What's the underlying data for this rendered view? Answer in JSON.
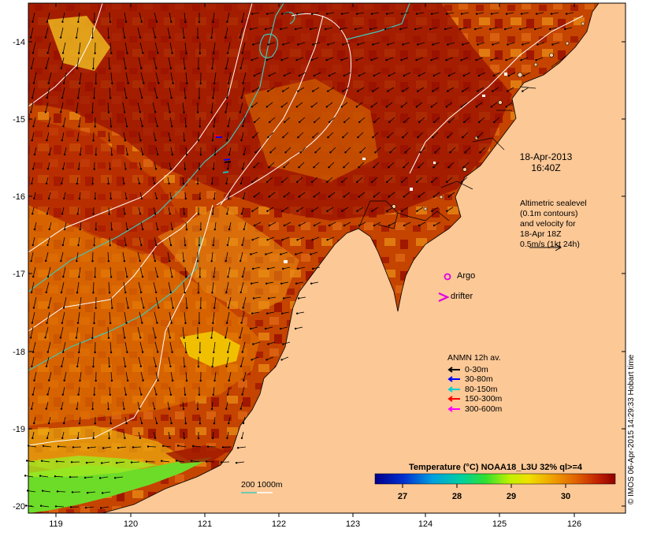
{
  "map": {
    "lat_ticks": [
      "-14",
      "-15",
      "-16",
      "-17",
      "-18",
      "-19",
      "-20"
    ],
    "lon_ticks": [
      "119",
      "120",
      "121",
      "122",
      "123",
      "124",
      "125",
      "126"
    ],
    "date_line1": "18-Apr-2013",
    "date_line2": "16:40Z",
    "altimetry_lines": [
      "Altimetric sealevel",
      "(0.1m contours)",
      "and velocity for",
      "18-Apr 18Z",
      "0.5m/s (1kt 24h)"
    ],
    "argo_label": "Argo",
    "drifter_label": "drifter",
    "anmn_title": "ANMN 12h av.",
    "anmn_items": [
      {
        "label": "0-30m",
        "color": "#000000"
      },
      {
        "label": "30-80m",
        "color": "#0000ff"
      },
      {
        "label": "80-150m",
        "color": "#00d0d0"
      },
      {
        "label": "150-300m",
        "color": "#ff0000"
      },
      {
        "label": "300-600m",
        "color": "#ff00ff"
      }
    ],
    "colorbar_title": "Temperature (°C) NOAA18_L3U 32% ql>=4",
    "colorbar_ticks": [
      "27",
      "28",
      "29",
      "30"
    ],
    "depth_contour_label": "200  1000m",
    "credit": "© IMOS 06-Apr-2015 14:29:33 Hobart time",
    "colors": {
      "land": "#fcc896",
      "sst_dark": "#a01000",
      "sst_mid": "#d04000",
      "sst_orange": "#e07000",
      "sst_yellow": "#f0c000",
      "sst_green": "#70e030",
      "contour_200": "#40c0b0",
      "contour_1000": "#ffffff"
    }
  }
}
